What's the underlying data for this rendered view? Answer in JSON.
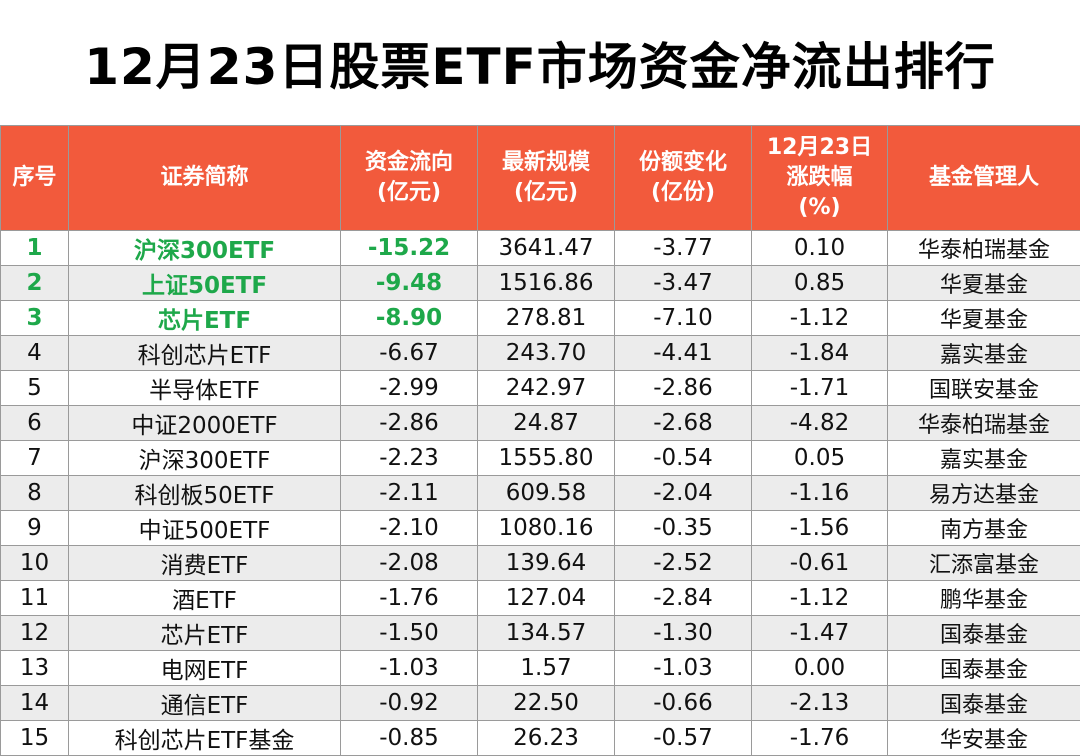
{
  "title": "12月23日股票ETF市场资金净流出排行",
  "headers": {
    "rank": "序号",
    "name": "证券简称",
    "flow_line1": "资金流向",
    "flow_line2": "(亿元)",
    "scale_line1": "最新规模",
    "scale_line2": "(亿元)",
    "share_line1": "份额变化",
    "share_line2": "(亿份)",
    "change_line1": "12月23日",
    "change_line2": "涨跌幅",
    "change_line3": "(%)",
    "manager": "基金管理人"
  },
  "rows": [
    {
      "rank": "1",
      "name": "沪深300ETF",
      "flow": "-15.22",
      "scale": "3641.47",
      "share": "-3.77",
      "change": "0.10",
      "manager": "华泰柏瑞基金"
    },
    {
      "rank": "2",
      "name": "上证50ETF",
      "flow": "-9.48",
      "scale": "1516.86",
      "share": "-3.47",
      "change": "0.85",
      "manager": "华夏基金"
    },
    {
      "rank": "3",
      "name": "芯片ETF",
      "flow": "-8.90",
      "scale": "278.81",
      "share": "-7.10",
      "change": "-1.12",
      "manager": "华夏基金"
    },
    {
      "rank": "4",
      "name": "科创芯片ETF",
      "flow": "-6.67",
      "scale": "243.70",
      "share": "-4.41",
      "change": "-1.84",
      "manager": "嘉实基金"
    },
    {
      "rank": "5",
      "name": "半导体ETF",
      "flow": "-2.99",
      "scale": "242.97",
      "share": "-2.86",
      "change": "-1.71",
      "manager": "国联安基金"
    },
    {
      "rank": "6",
      "name": "中证2000ETF",
      "flow": "-2.86",
      "scale": "24.87",
      "share": "-2.68",
      "change": "-4.82",
      "manager": "华泰柏瑞基金"
    },
    {
      "rank": "7",
      "name": "沪深300ETF",
      "flow": "-2.23",
      "scale": "1555.80",
      "share": "-0.54",
      "change": "0.05",
      "manager": "嘉实基金"
    },
    {
      "rank": "8",
      "name": "科创板50ETF",
      "flow": "-2.11",
      "scale": "609.58",
      "share": "-2.04",
      "change": "-1.16",
      "manager": "易方达基金"
    },
    {
      "rank": "9",
      "name": "中证500ETF",
      "flow": "-2.10",
      "scale": "1080.16",
      "share": "-0.35",
      "change": "-1.56",
      "manager": "南方基金"
    },
    {
      "rank": "10",
      "name": "消费ETF",
      "flow": "-2.08",
      "scale": "139.64",
      "share": "-2.52",
      "change": "-0.61",
      "manager": "汇添富基金"
    },
    {
      "rank": "11",
      "name": "酒ETF",
      "flow": "-1.76",
      "scale": "127.04",
      "share": "-2.84",
      "change": "-1.12",
      "manager": "鹏华基金"
    },
    {
      "rank": "12",
      "name": "芯片ETF",
      "flow": "-1.50",
      "scale": "134.57",
      "share": "-1.30",
      "change": "-1.47",
      "manager": "国泰基金"
    },
    {
      "rank": "13",
      "name": "电网ETF",
      "flow": "-1.03",
      "scale": "1.57",
      "share": "-1.03",
      "change": "0.00",
      "manager": "国泰基金"
    },
    {
      "rank": "14",
      "name": "通信ETF",
      "flow": "-0.92",
      "scale": "22.50",
      "share": "-0.66",
      "change": "-2.13",
      "manager": "国泰基金"
    },
    {
      "rank": "15",
      "name": "科创芯片ETF基金",
      "flow": "-0.85",
      "scale": "26.23",
      "share": "-0.57",
      "change": "-1.76",
      "manager": "华安基金"
    }
  ],
  "colors": {
    "header_bg": "#f25a3c",
    "header_text": "#ffffff",
    "top3_highlight": "#1ea84a",
    "zebra_row": "#ececec"
  }
}
